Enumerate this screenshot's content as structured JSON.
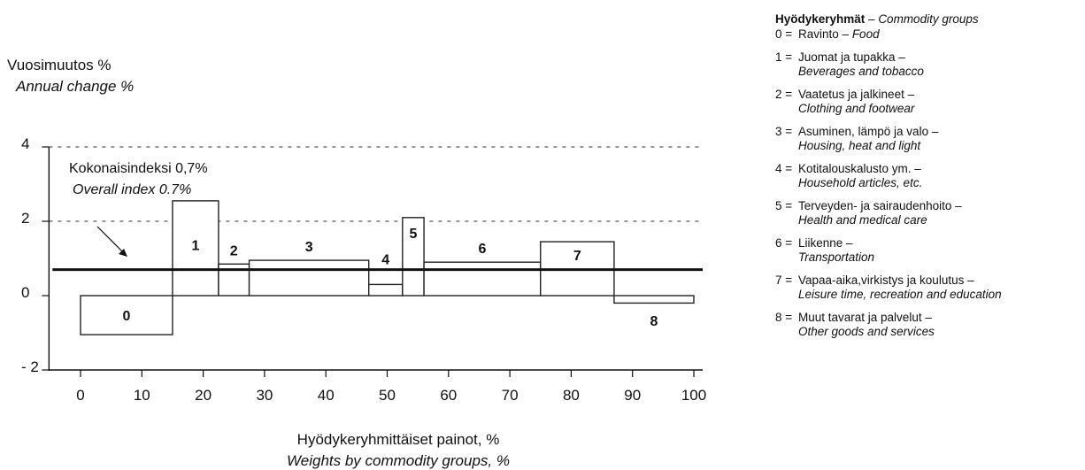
{
  "chart_data": {
    "type": "bar",
    "y_title_fi": "Vuosimuutos %",
    "y_title_en": "Annual change %",
    "x_title_fi": "Hyödykeryhmittäiset painot, %",
    "x_title_en": "Weights by commodity groups, %",
    "overall_label_fi": "Kokonaisindeksi 0,7%",
    "overall_label_en": "Overall index 0.7%",
    "overall_value": 0.7,
    "xlim": [
      -5,
      100
    ],
    "ylim": [
      -2,
      4
    ],
    "x_ticks": [
      "0",
      "10",
      "20",
      "30",
      "40",
      "50",
      "60",
      "70",
      "80",
      "90",
      "100"
    ],
    "y_ticks": [
      "4",
      "2",
      "0",
      "- 2"
    ],
    "dashed_gridlines_at": [
      2,
      4
    ],
    "bars": [
      {
        "label": "0",
        "x_start": 0,
        "x_end": 15,
        "value": -1.05
      },
      {
        "label": "1",
        "x_start": 15,
        "x_end": 22.5,
        "value": 2.55
      },
      {
        "label": "2",
        "x_start": 22.5,
        "x_end": 27.5,
        "value": 0.85
      },
      {
        "label": "3",
        "x_start": 27.5,
        "x_end": 47,
        "value": 0.95
      },
      {
        "label": "4",
        "x_start": 47,
        "x_end": 52.5,
        "value": 0.3
      },
      {
        "label": "5",
        "x_start": 52.5,
        "x_end": 56,
        "value": 2.1
      },
      {
        "label": "6",
        "x_start": 56,
        "x_end": 75,
        "value": 0.9
      },
      {
        "label": "7",
        "x_start": 75,
        "x_end": 87,
        "value": 1.45
      },
      {
        "label": "8",
        "x_start": 87,
        "x_end": 100,
        "value": -0.2
      }
    ]
  },
  "legend": {
    "title_fi": "Hyödykeryhmät",
    "title_sep": " – ",
    "title_en": "Commodity groups",
    "items": [
      {
        "num": "0",
        "fi": "Ravinto –",
        "en": "Food"
      },
      {
        "num": "1",
        "fi": "Juomat ja tupakka –",
        "en": "Beverages and tobacco"
      },
      {
        "num": "2",
        "fi": "Vaatetus ja jalkineet –",
        "en": "Clothing and footwear"
      },
      {
        "num": "3",
        "fi": "Asuminen, lämpö ja valo –",
        "en": "Housing, heat and light"
      },
      {
        "num": "4",
        "fi": "Kotitalouskalusto ym. –",
        "en": "Household articles, etc."
      },
      {
        "num": "5",
        "fi": "Terveyden- ja sairaudenhoito –",
        "en": "Health and medical care"
      },
      {
        "num": "6",
        "fi": "Liikenne –",
        "en": "Transportation"
      },
      {
        "num": "7",
        "fi": "Vapaa-aika,virkistys ja koulutus –",
        "en": "Leisure time, recreation and education"
      },
      {
        "num": "8",
        "fi": "Muut tavarat ja palvelut –",
        "en": "Other goods and services"
      }
    ]
  }
}
